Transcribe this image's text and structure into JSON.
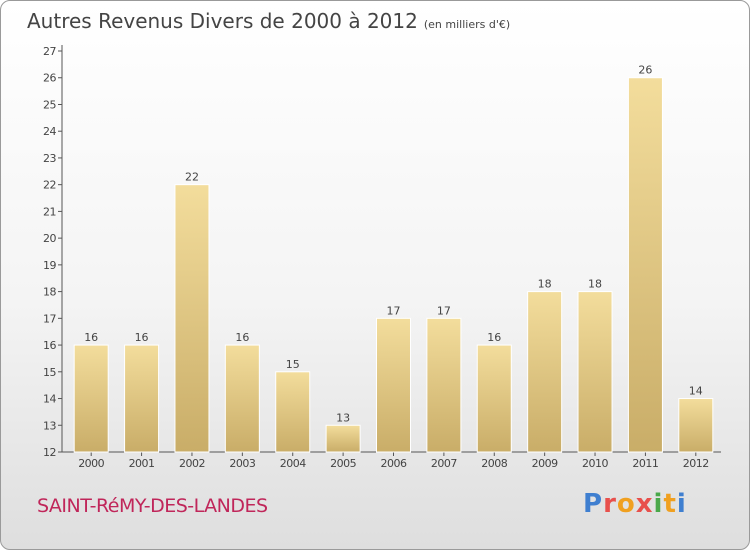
{
  "title": "Autres Revenus Divers de 2000 à 2012",
  "unit_label": "(en milliers d'€)",
  "location": "SAINT-RéMY-DES-LANDES",
  "logo_text": "Proxiti",
  "colors": {
    "bar_light": "#f3dd9c",
    "bar_dark": "#c9ad68",
    "location_text": "#c0265a"
  },
  "chart_data": {
    "type": "bar",
    "title": "Autres Revenus Divers de 2000 à 2012",
    "categories": [
      "2000",
      "2001",
      "2002",
      "2003",
      "2004",
      "2005",
      "2006",
      "2007",
      "2008",
      "2009",
      "2010",
      "2011",
      "2012"
    ],
    "values": [
      16,
      16,
      22,
      16,
      15,
      13,
      17,
      17,
      16,
      18,
      18,
      26,
      14
    ],
    "ylim": [
      12,
      27
    ],
    "yticks": [
      12,
      13,
      14,
      15,
      16,
      17,
      18,
      19,
      20,
      21,
      22,
      23,
      24,
      25,
      26,
      27
    ],
    "grid": false
  }
}
